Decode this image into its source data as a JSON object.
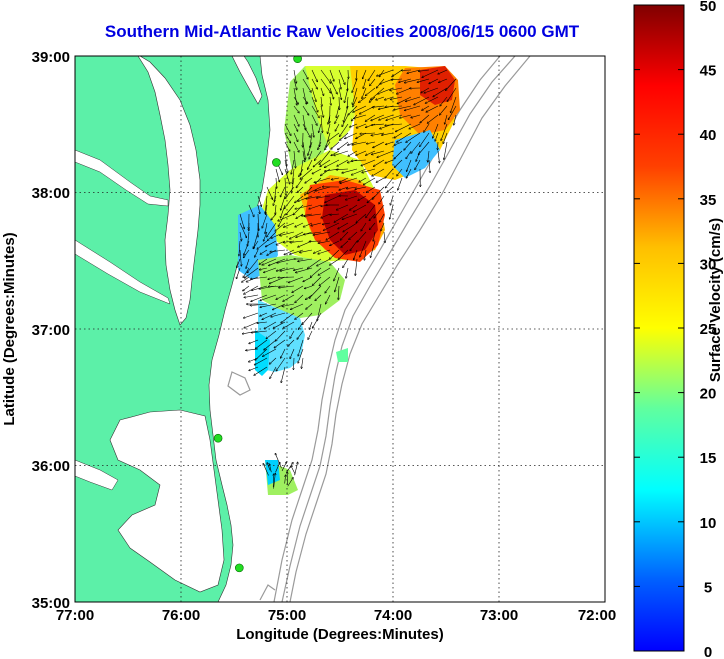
{
  "title": "Southern Mid-Atlantic Raw Velocities 2008/06/15 0600 GMT",
  "xlabel": "Longitude (Degrees:Minutes)",
  "ylabel": "Latitude (Degrees:Minutes)",
  "colorbar_label": "Surface Velocity (cm/s)",
  "x_ticks": [
    "77:00",
    "76:00",
    "75:00",
    "74:00",
    "73:00",
    "72:00"
  ],
  "y_ticks": [
    "39:00",
    "38:00",
    "37:00",
    "36:00",
    "35:00"
  ],
  "colorbar_ticks": [
    "50",
    "45",
    "40",
    "35",
    "30",
    "25",
    "20",
    "15",
    "10",
    "5",
    "0"
  ],
  "colors": {
    "land": "#5cf0a8",
    "title": "#0000e0",
    "contour": "#999999",
    "station": "#22dd22"
  },
  "chart_data": {
    "type": "heatmap",
    "title": "Southern Mid-Atlantic Raw Velocities 2008/06/15 0600 GMT",
    "xlabel": "Longitude (Degrees:Minutes)",
    "ylabel": "Latitude (Degrees:Minutes)",
    "xlim": [
      -77.0,
      -72.0
    ],
    "ylim": [
      35.0,
      39.0
    ],
    "colorbar_range": [
      0,
      50
    ],
    "colorbar_label": "Surface Velocity (cm/s)",
    "colormap": "jet",
    "grid": true,
    "stations": [
      {
        "lon": -74.9,
        "lat": 38.98
      },
      {
        "lon": -75.1,
        "lat": 38.22
      },
      {
        "lon": -75.65,
        "lat": 36.2
      },
      {
        "lon": -75.45,
        "lat": 35.25
      }
    ]
  }
}
